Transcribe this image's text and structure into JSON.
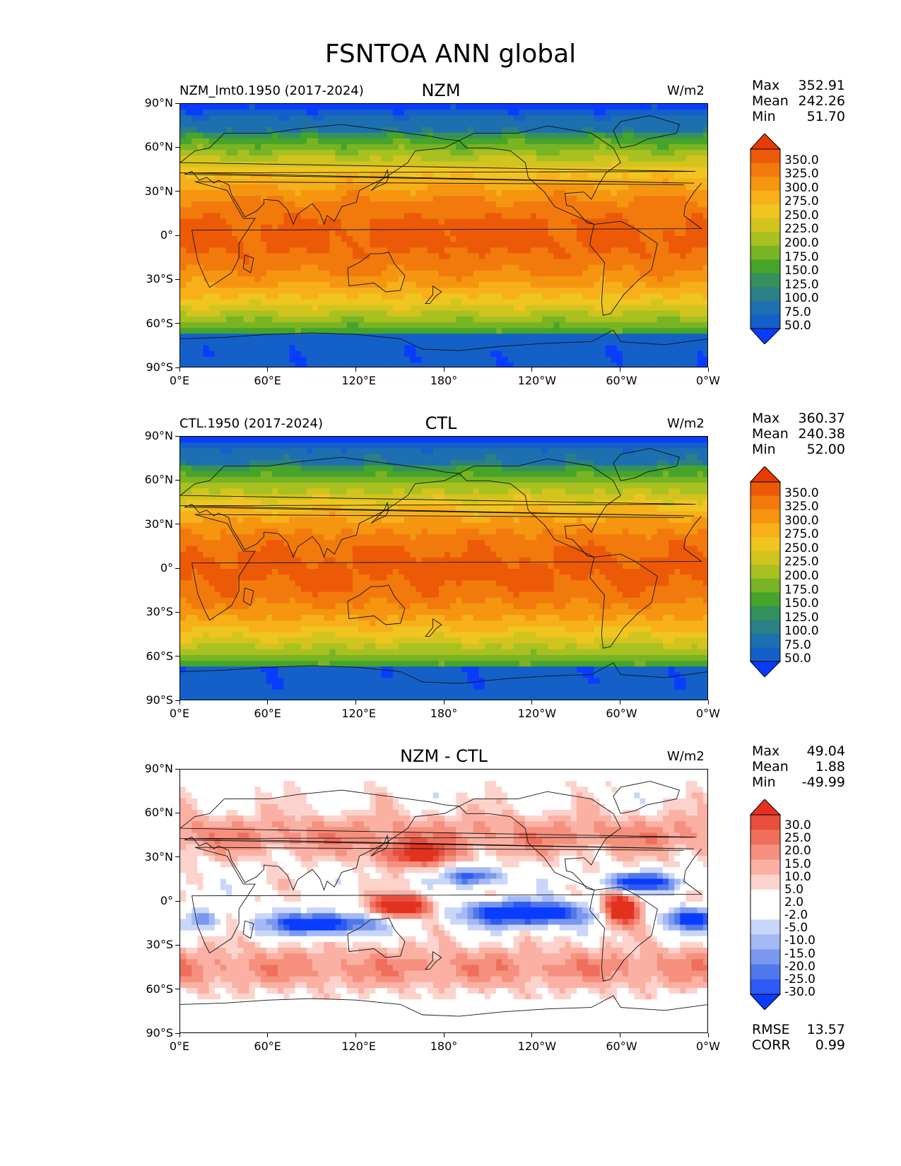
{
  "figure_title": "FSNTOA ANN global",
  "lat_ticks": [
    "90°N",
    "60°N",
    "30°N",
    "0°",
    "30°S",
    "60°S",
    "90°S"
  ],
  "lon_ticks": [
    "0°E",
    "60°E",
    "120°E",
    "180°",
    "120°W",
    "60°W",
    "0°W"
  ],
  "abs_colors": [
    "#0a3cff",
    "#1460c8",
    "#1d6fb0",
    "#2b7f86",
    "#34905c",
    "#46a42a",
    "#78b423",
    "#a8c020",
    "#d2c41f",
    "#f0c520",
    "#f7b019",
    "#f59510",
    "#f27a0c",
    "#ec5a08",
    "#e63b03"
  ],
  "diff_colors": [
    "#0a3cff",
    "#2d5af2",
    "#5078ec",
    "#7a98f0",
    "#a4b8f5",
    "#c9d6fa",
    "#ffffff",
    "#ffffff",
    "#fcd3cc",
    "#fab1a3",
    "#f5907f",
    "#ef6f5c",
    "#e84e3c",
    "#e2321f"
  ],
  "chart_data": [
    {
      "type": "heatmap",
      "panel": "NZM",
      "left_label": "NZM_lmt0.1950 (2017-2024)",
      "title": "NZM",
      "units": "W/m2",
      "stats": {
        "max": "352.91",
        "mean": "242.26",
        "min": "51.70"
      },
      "stat_labels": {
        "max": "Max",
        "mean": "Mean",
        "min": "Min"
      },
      "colorbar_levels": [
        "350.0",
        "325.0",
        "300.0",
        "275.0",
        "250.0",
        "225.0",
        "200.0",
        "175.0",
        "150.0",
        "125.0",
        "100.0",
        "75.0",
        "50.0"
      ],
      "xlim": [
        0,
        360
      ],
      "ylim": [
        -90,
        90
      ]
    },
    {
      "type": "heatmap",
      "panel": "CTL",
      "left_label": "CTL.1950 (2017-2024)",
      "title": "CTL",
      "units": "W/m2",
      "stats": {
        "max": "360.37",
        "mean": "240.38",
        "min": "52.00"
      },
      "stat_labels": {
        "max": "Max",
        "mean": "Mean",
        "min": "Min"
      },
      "colorbar_levels": [
        "350.0",
        "325.0",
        "300.0",
        "275.0",
        "250.0",
        "225.0",
        "200.0",
        "175.0",
        "150.0",
        "125.0",
        "100.0",
        "75.0",
        "50.0"
      ],
      "xlim": [
        0,
        360
      ],
      "ylim": [
        -90,
        90
      ]
    },
    {
      "type": "heatmap",
      "panel": "diff",
      "left_label": "",
      "title": "NZM - CTL",
      "units": "W/m2",
      "stats": {
        "max": "49.04",
        "mean": "1.88",
        "min": "-49.99"
      },
      "stat_labels": {
        "max": "Max",
        "mean": "Mean",
        "min": "Min"
      },
      "colorbar_levels": [
        "30.0",
        "25.0",
        "20.0",
        "15.0",
        "10.0",
        "5.0",
        "2.0",
        "-2.0",
        "-5.0",
        "-10.0",
        "-15.0",
        "-20.0",
        "-25.0",
        "-30.0"
      ],
      "extra_stats": {
        "rmse_label": "RMSE",
        "rmse": "13.57",
        "corr_label": "CORR",
        "corr": "0.99"
      },
      "xlim": [
        0,
        360
      ],
      "ylim": [
        -90,
        90
      ]
    }
  ]
}
